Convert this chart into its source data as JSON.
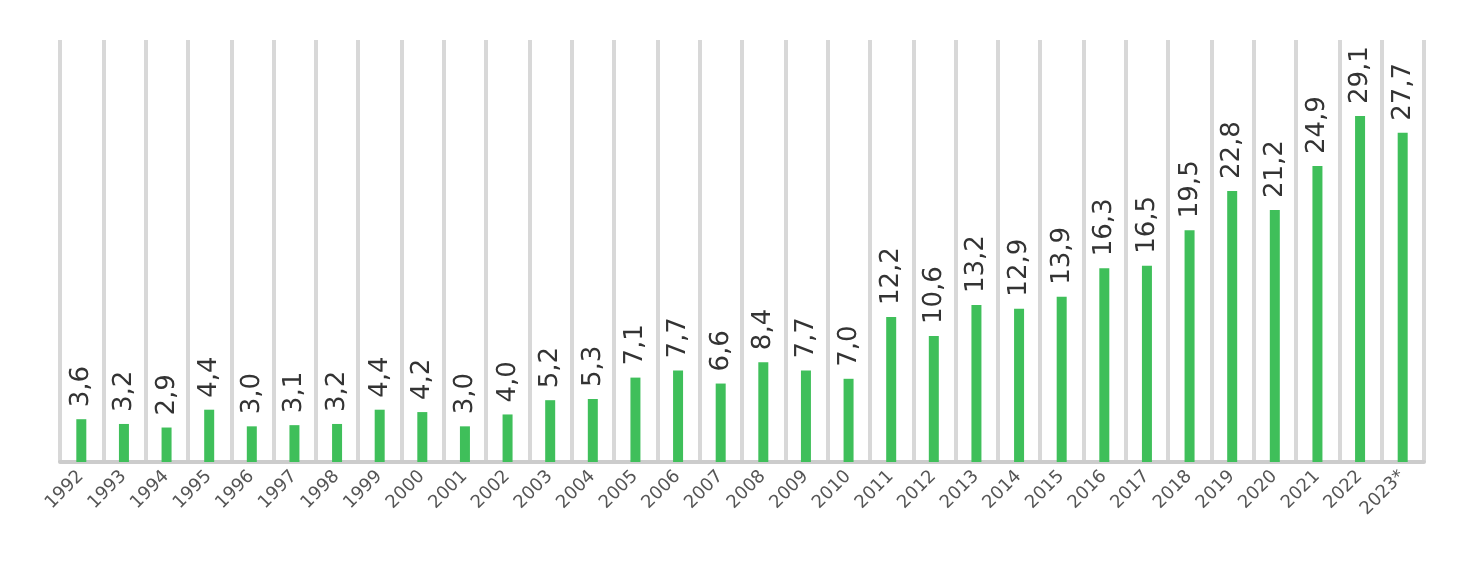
{
  "chart_data": {
    "type": "bar",
    "categories": [
      "1992",
      "1993",
      "1994",
      "1995",
      "1996",
      "1997",
      "1998",
      "1999",
      "2000",
      "2001",
      "2002",
      "2003",
      "2004",
      "2005",
      "2006",
      "2007",
      "2008",
      "2009",
      "2010",
      "2011",
      "2012",
      "2013",
      "2014",
      "2015",
      "2016",
      "2017",
      "2018",
      "2019",
      "2020",
      "2021",
      "2022",
      "2023*"
    ],
    "values": [
      3.6,
      3.2,
      2.9,
      4.4,
      3.0,
      3.1,
      3.2,
      4.4,
      4.2,
      3.0,
      4.0,
      5.2,
      5.3,
      7.1,
      7.7,
      6.6,
      8.4,
      7.7,
      7.0,
      12.2,
      10.6,
      13.2,
      12.9,
      13.9,
      16.3,
      16.5,
      19.5,
      22.8,
      21.2,
      24.9,
      29.1,
      27.7
    ],
    "value_labels": [
      "3,6",
      "3,2",
      "2,9",
      "4,4",
      "3,0",
      "3,1",
      "3,2",
      "4,4",
      "4,2",
      "3,0",
      "4,0",
      "5,2",
      "5,3",
      "7,1",
      "7,7",
      "6,6",
      "8,4",
      "7,7",
      "7,0",
      "12,2",
      "10,6",
      "13,2",
      "12,9",
      "13,9",
      "16,3",
      "16,5",
      "19,5",
      "22,8",
      "21,2",
      "24,9",
      "29,1",
      "27,7"
    ],
    "color": "#3fbf5a",
    "grid": "x"
  }
}
